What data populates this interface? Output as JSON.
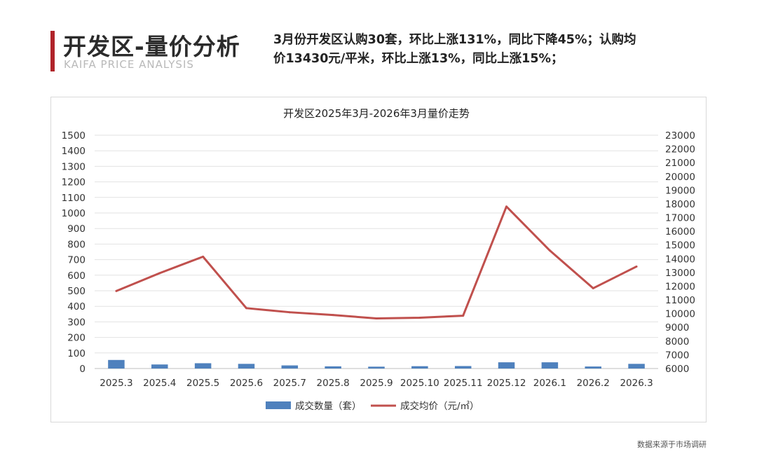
{
  "header": {
    "title": "开发区-量价分析",
    "subtitle": "KAIFA PRICE ANALYSIS",
    "summary_line1": "3月份开发区认购30套，环比上涨131%，同比下降45%；认购均",
    "summary_line2": "价13430元/平米，环比上涨13%，同比上涨15%；"
  },
  "footer": {
    "source": "数据来源于市场调研"
  },
  "colors": {
    "accent": "#b0242a",
    "bar": "#4f81bd",
    "line": "#c0504d"
  },
  "chart_data": {
    "type": "bar",
    "title": "开发区2025年3月-2026年3月量价走势",
    "categories": [
      "2025.3",
      "2025.4",
      "2025.5",
      "2025.6",
      "2025.7",
      "2025.8",
      "2025.9",
      "2025.10",
      "2025.11",
      "2025.12",
      "2026.1",
      "2026.2",
      "2026.3"
    ],
    "series": [
      {
        "name": "成交数量（套）",
        "type": "bar",
        "axis": "left",
        "values": [
          55,
          26,
          34,
          30,
          20,
          14,
          12,
          15,
          16,
          40,
          40,
          13,
          30
        ]
      },
      {
        "name": "成交均价（元/㎡）",
        "type": "line",
        "axis": "right",
        "values": [
          11650,
          12950,
          14150,
          10400,
          10100,
          9900,
          9650,
          9700,
          9850,
          17800,
          14600,
          11850,
          13430
        ]
      }
    ],
    "ylim_left": [
      0,
      1500
    ],
    "yticks_left": [
      0,
      100,
      200,
      300,
      400,
      500,
      600,
      700,
      800,
      900,
      1000,
      1100,
      1200,
      1300,
      1400,
      1500
    ],
    "ylim_right": [
      6000,
      23000
    ],
    "yticks_right": [
      6000,
      7000,
      8000,
      9000,
      10000,
      11000,
      12000,
      13000,
      14000,
      15000,
      16000,
      17000,
      18000,
      19000,
      20000,
      21000,
      22000,
      23000
    ],
    "grid": true,
    "legend": "bottom"
  }
}
